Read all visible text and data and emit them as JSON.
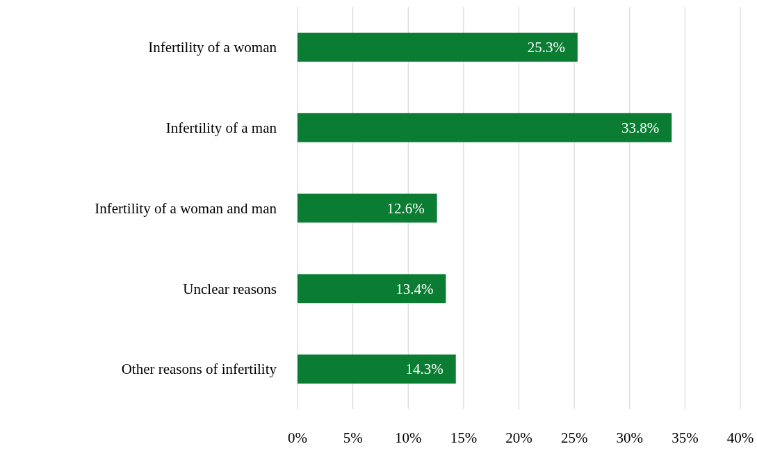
{
  "chart_data": {
    "type": "bar",
    "orientation": "horizontal",
    "categories": [
      "Infertility of a woman",
      "Infertility of a man",
      "Infertility of a woman and man",
      "Unclear reasons",
      "Other reasons of infertility"
    ],
    "values": [
      25.3,
      33.8,
      12.6,
      13.4,
      14.3
    ],
    "value_labels": [
      "25.3%",
      "33.8%",
      "12.6%",
      "13.4%",
      "14.3%"
    ],
    "color": "#0a7d32",
    "xlim": [
      0,
      40
    ],
    "xticks": [
      {
        "value": 0,
        "label": "0%"
      },
      {
        "value": 5,
        "label": "5%"
      },
      {
        "value": 10,
        "label": "10%"
      },
      {
        "value": 15,
        "label": "15%"
      },
      {
        "value": 20,
        "label": "20%"
      },
      {
        "value": 25,
        "label": "25%"
      },
      {
        "value": 30,
        "label": "30%"
      },
      {
        "value": 35,
        "label": "35%"
      },
      {
        "value": 40,
        "label": "40%"
      }
    ],
    "grid": "x"
  }
}
